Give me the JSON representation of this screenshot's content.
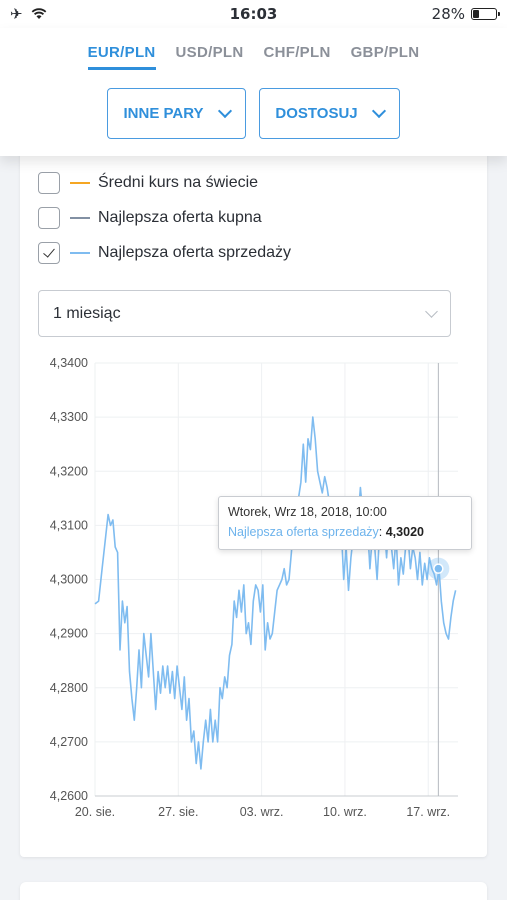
{
  "status": {
    "time": "16:03",
    "battery": "28%",
    "battery_level": 0.28
  },
  "tabs": [
    {
      "label": "EUR/PLN",
      "active": true
    },
    {
      "label": "USD/PLN",
      "active": false
    },
    {
      "label": "CHF/PLN",
      "active": false
    },
    {
      "label": "GBP/PLN",
      "active": false
    }
  ],
  "filters": {
    "pairs_label": "INNE PARY",
    "customize_label": "DOSTOSUJ"
  },
  "legend": [
    {
      "label": "Średni kurs na świecie",
      "color": "#f5a623",
      "checked": false
    },
    {
      "label": "Najlepsza oferta kupna",
      "color": "#8290a3",
      "checked": false
    },
    {
      "label": "Najlepsza oferta sprzedaży",
      "color": "#7fbcf0",
      "checked": true
    }
  ],
  "period": {
    "selected": "1 miesiąc"
  },
  "tooltip": {
    "date": "Wtorek, Wrz 18, 2018, 10:00",
    "series": "Najlepsza oferta sprzedaży",
    "value": "4,3020"
  },
  "chart_data": {
    "type": "line",
    "ylim": [
      4.26,
      4.34
    ],
    "y_ticks": [
      "4,3400",
      "4,3300",
      "4,3200",
      "4,3100",
      "4,3000",
      "4,2900",
      "4,2800",
      "4,2700",
      "4,2600"
    ],
    "x_ticks": [
      "20. sie.",
      "27. sie.",
      "03. wrz.",
      "10. wrz.",
      "17. wrz."
    ],
    "x_tick_days": [
      0,
      7,
      14,
      21,
      28
    ],
    "x_range_days": [
      0,
      30.5
    ],
    "series": [
      {
        "name": "Najlepsza oferta sprzedaży",
        "color": "#7fbcf0",
        "points": [
          [
            0.0,
            4.2955
          ],
          [
            0.3,
            4.296
          ],
          [
            0.6,
            4.302
          ],
          [
            0.9,
            4.308
          ],
          [
            1.1,
            4.312
          ],
          [
            1.3,
            4.31
          ],
          [
            1.5,
            4.311
          ],
          [
            1.7,
            4.306
          ],
          [
            1.9,
            4.305
          ],
          [
            2.1,
            4.287
          ],
          [
            2.3,
            4.296
          ],
          [
            2.5,
            4.292
          ],
          [
            2.7,
            4.295
          ],
          [
            2.9,
            4.283
          ],
          [
            3.1,
            4.278
          ],
          [
            3.3,
            4.274
          ],
          [
            3.5,
            4.28
          ],
          [
            3.7,
            4.287
          ],
          [
            3.9,
            4.28
          ],
          [
            4.1,
            4.29
          ],
          [
            4.3,
            4.286
          ],
          [
            4.5,
            4.282
          ],
          [
            4.7,
            4.29
          ],
          [
            4.9,
            4.283
          ],
          [
            5.1,
            4.276
          ],
          [
            5.3,
            4.283
          ],
          [
            5.5,
            4.279
          ],
          [
            5.7,
            4.284
          ],
          [
            5.9,
            4.28
          ],
          [
            6.1,
            4.284
          ],
          [
            6.3,
            4.279
          ],
          [
            6.5,
            4.283
          ],
          [
            6.7,
            4.278
          ],
          [
            6.9,
            4.284
          ],
          [
            7.1,
            4.28
          ],
          [
            7.3,
            4.276
          ],
          [
            7.5,
            4.282
          ],
          [
            7.7,
            4.274
          ],
          [
            7.9,
            4.278
          ],
          [
            8.1,
            4.27
          ],
          [
            8.3,
            4.272
          ],
          [
            8.5,
            4.266
          ],
          [
            8.7,
            4.27
          ],
          [
            8.9,
            4.265
          ],
          [
            9.1,
            4.27
          ],
          [
            9.3,
            4.274
          ],
          [
            9.5,
            4.27
          ],
          [
            9.7,
            4.276
          ],
          [
            9.9,
            4.27
          ],
          [
            10.1,
            4.274
          ],
          [
            10.3,
            4.27
          ],
          [
            10.5,
            4.28
          ],
          [
            10.7,
            4.278
          ],
          [
            10.9,
            4.282
          ],
          [
            11.1,
            4.28
          ],
          [
            11.3,
            4.286
          ],
          [
            11.5,
            4.288
          ],
          [
            11.7,
            4.296
          ],
          [
            11.9,
            4.293
          ],
          [
            12.1,
            4.298
          ],
          [
            12.3,
            4.294
          ],
          [
            12.5,
            4.299
          ],
          [
            12.7,
            4.29
          ],
          [
            12.9,
            4.292
          ],
          [
            13.1,
            4.288
          ],
          [
            13.3,
            4.296
          ],
          [
            13.5,
            4.299
          ],
          [
            13.7,
            4.298
          ],
          [
            13.9,
            4.294
          ],
          [
            14.1,
            4.299
          ],
          [
            14.3,
            4.287
          ],
          [
            14.5,
            4.292
          ],
          [
            14.7,
            4.289
          ],
          [
            14.9,
            4.29
          ],
          [
            15.1,
            4.294
          ],
          [
            15.3,
            4.298
          ],
          [
            15.5,
            4.299
          ],
          [
            15.7,
            4.3
          ],
          [
            15.9,
            4.302
          ],
          [
            16.1,
            4.299
          ],
          [
            16.3,
            4.3
          ],
          [
            16.5,
            4.305
          ],
          [
            16.7,
            4.311
          ],
          [
            16.9,
            4.308
          ],
          [
            17.1,
            4.315
          ],
          [
            17.3,
            4.318
          ],
          [
            17.5,
            4.325
          ],
          [
            17.7,
            4.318
          ],
          [
            17.9,
            4.326
          ],
          [
            18.1,
            4.324
          ],
          [
            18.3,
            4.33
          ],
          [
            18.5,
            4.326
          ],
          [
            18.7,
            4.32
          ],
          [
            18.9,
            4.318
          ],
          [
            19.1,
            4.316
          ],
          [
            19.3,
            4.319
          ],
          [
            19.5,
            4.317
          ],
          [
            19.7,
            4.314
          ],
          [
            19.9,
            4.31
          ],
          [
            20.1,
            4.312
          ],
          [
            20.3,
            4.308
          ],
          [
            20.5,
            4.313
          ],
          [
            20.7,
            4.309
          ],
          [
            20.9,
            4.3
          ],
          [
            21.1,
            4.306
          ],
          [
            21.3,
            4.298
          ],
          [
            21.5,
            4.304
          ],
          [
            21.7,
            4.308
          ],
          [
            21.9,
            4.312
          ],
          [
            22.1,
            4.311
          ],
          [
            22.3,
            4.317
          ],
          [
            22.5,
            4.312
          ],
          [
            22.7,
            4.306
          ],
          [
            22.9,
            4.31
          ],
          [
            23.1,
            4.302
          ],
          [
            23.3,
            4.308
          ],
          [
            23.5,
            4.306
          ],
          [
            23.7,
            4.3
          ],
          [
            23.9,
            4.308
          ],
          [
            24.1,
            4.306
          ],
          [
            24.3,
            4.31
          ],
          [
            24.5,
            4.304
          ],
          [
            24.7,
            4.312
          ],
          [
            24.9,
            4.306
          ],
          [
            25.1,
            4.302
          ],
          [
            25.3,
            4.308
          ],
          [
            25.5,
            4.299
          ],
          [
            25.7,
            4.304
          ],
          [
            25.9,
            4.301
          ],
          [
            26.1,
            4.306
          ],
          [
            26.3,
            4.308
          ],
          [
            26.5,
            4.302
          ],
          [
            26.7,
            4.306
          ],
          [
            26.9,
            4.304
          ],
          [
            27.1,
            4.3
          ],
          [
            27.3,
            4.305
          ],
          [
            27.5,
            4.299
          ],
          [
            27.7,
            4.303
          ],
          [
            27.9,
            4.3
          ],
          [
            28.1,
            4.304
          ],
          [
            28.3,
            4.302
          ],
          [
            28.5,
            4.301
          ],
          [
            28.7,
            4.299
          ],
          [
            28.9,
            4.302
          ],
          [
            29.1,
            4.296
          ],
          [
            29.3,
            4.292
          ],
          [
            29.5,
            4.29
          ],
          [
            29.7,
            4.289
          ],
          [
            29.9,
            4.293
          ],
          [
            30.1,
            4.296
          ],
          [
            30.3,
            4.298
          ]
        ]
      }
    ],
    "highlight": {
      "x": 28.85,
      "y": 4.302
    },
    "grid": true
  }
}
